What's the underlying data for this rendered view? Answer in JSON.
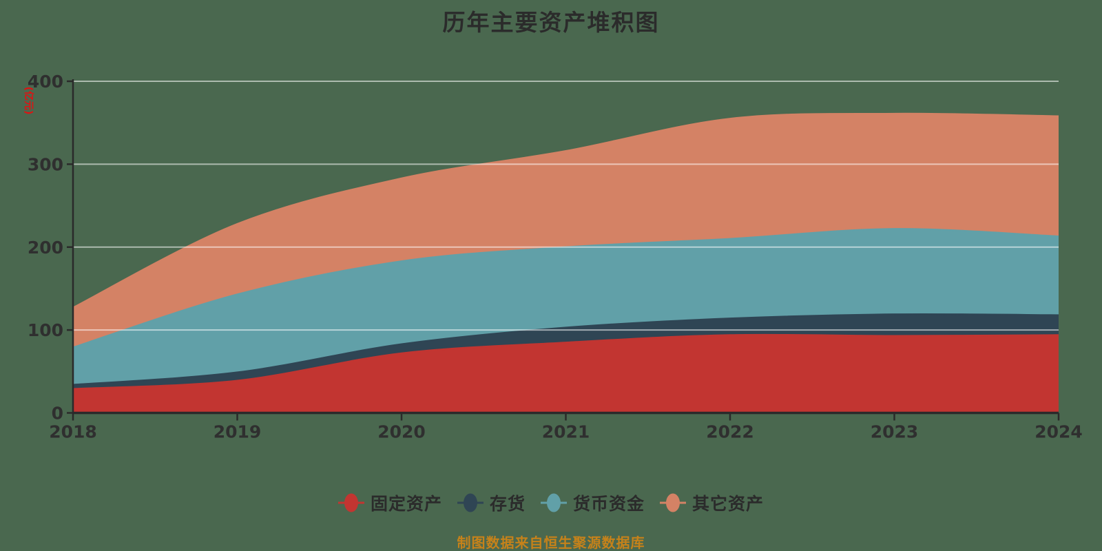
{
  "page": {
    "background": "#4a684f"
  },
  "header": {
    "title": "历年主要资产堆积图",
    "title_color": "#2b2b2b"
  },
  "footer": {
    "caption": "制图数据来自恒生聚源数据库",
    "color": "#c6821a"
  },
  "chart_data": {
    "type": "area",
    "stacked": true,
    "smooth": true,
    "grid": true,
    "legend_position": "bottom",
    "title": "历年主要资产堆积图",
    "y_name": "(亿元)",
    "y_name_color": "#e01212",
    "xlabel": "",
    "ylabel": "(亿元)",
    "categories": [
      "2018",
      "2019",
      "2020",
      "2021",
      "2022",
      "2023",
      "2024"
    ],
    "ylim": [
      0,
      400
    ],
    "y_ticks": [
      0,
      100,
      200,
      300,
      400
    ],
    "series": [
      {
        "name": "固定资产",
        "color": "#c23531",
        "values": [
          29,
          39,
          72,
          85,
          94,
          93,
          94
        ]
      },
      {
        "name": "存货",
        "color": "#2f4554",
        "values": [
          5,
          10,
          11,
          18,
          20,
          26,
          24
        ]
      },
      {
        "name": "货币资金",
        "color": "#61a0a8",
        "values": [
          45,
          94,
          100,
          97,
          96,
          103,
          95
        ]
      },
      {
        "name": "其它资产",
        "color": "#d48265",
        "values": [
          48,
          85,
          100,
          116,
          145,
          139,
          145
        ]
      }
    ],
    "stack_totals": [
      127,
      228,
      283,
      316,
      355,
      361,
      358
    ],
    "axis_color": "#2a2a2a",
    "tick_label_color": "#2f2f2f",
    "gridline_color": "rgba(255,255,255,0.55)"
  }
}
